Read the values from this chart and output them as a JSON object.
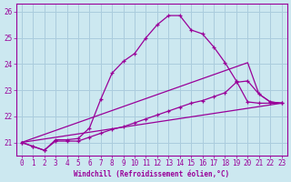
{
  "xlabel": "Windchill (Refroidissement éolien,°C)",
  "ylabel": "",
  "bg_color": "#cce8f0",
  "grid_color": "#aaccdd",
  "line_color": "#990099",
  "xlim": [
    -0.5,
    23.5
  ],
  "ylim": [
    20.5,
    26.3
  ],
  "yticks": [
    21,
    22,
    23,
    24,
    25,
    26
  ],
  "xticks": [
    0,
    1,
    2,
    3,
    4,
    5,
    6,
    7,
    8,
    9,
    10,
    11,
    12,
    13,
    14,
    15,
    16,
    17,
    18,
    19,
    20,
    21,
    22,
    23
  ],
  "lines": [
    {
      "x": [
        0,
        1,
        2,
        3,
        4,
        5,
        6,
        7,
        8,
        9,
        10,
        11,
        12,
        13,
        14,
        15,
        16,
        17,
        18,
        19,
        20,
        21,
        22,
        23
      ],
      "y": [
        21.0,
        20.85,
        20.7,
        21.1,
        21.1,
        21.15,
        21.55,
        22.65,
        23.65,
        24.1,
        24.4,
        25.0,
        25.5,
        25.85,
        25.85,
        25.3,
        25.15,
        24.65,
        24.05,
        23.35,
        22.55,
        22.5,
        22.5,
        22.5
      ],
      "marker": "+"
    },
    {
      "x": [
        0,
        1,
        2,
        3,
        4,
        5,
        6,
        7,
        8,
        9,
        10,
        11,
        12,
        13,
        14,
        15,
        16,
        17,
        18,
        19,
        20,
        21,
        22,
        23
      ],
      "y": [
        21.0,
        20.85,
        20.7,
        21.05,
        21.05,
        21.05,
        21.2,
        21.35,
        21.5,
        21.6,
        21.75,
        21.9,
        22.05,
        22.2,
        22.35,
        22.5,
        22.6,
        22.75,
        22.9,
        23.3,
        23.35,
        22.85,
        22.55,
        22.5
      ],
      "marker": "+"
    },
    {
      "x": [
        0,
        20,
        21,
        22,
        23
      ],
      "y": [
        21.0,
        24.05,
        22.85,
        22.55,
        22.5
      ],
      "marker": null
    },
    {
      "x": [
        0,
        23
      ],
      "y": [
        21.0,
        22.5
      ],
      "marker": null
    }
  ]
}
